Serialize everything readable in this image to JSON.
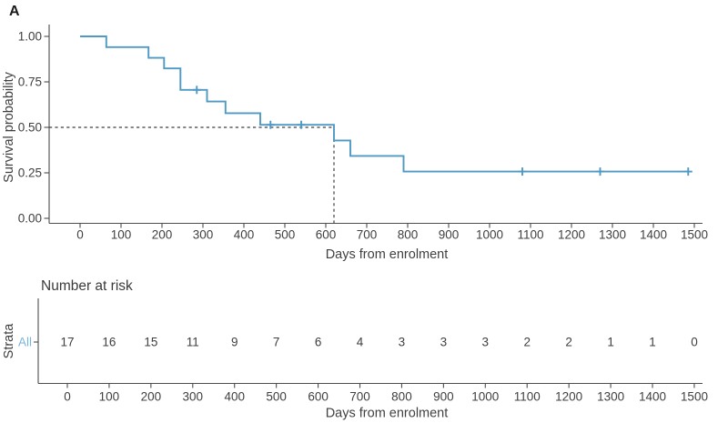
{
  "panel_label": "A",
  "colors": {
    "curve": "#4f99c4",
    "axis": "#4d4d4d",
    "text": "#404040",
    "dashed": "#3f3f3f",
    "strata_label": "#7ab3da"
  },
  "chart_data": {
    "type": "line",
    "subtype": "kaplan-meier-step",
    "title": "A",
    "xlabel": "Days from enrolment",
    "ylabel": "Survival probability",
    "xlim": [
      0,
      1500
    ],
    "ylim": [
      0.0,
      1.0
    ],
    "grid": false,
    "xticks": [
      0,
      100,
      200,
      300,
      400,
      500,
      600,
      700,
      800,
      900,
      1000,
      1100,
      1200,
      1300,
      1400,
      1500
    ],
    "yticks": [
      0.0,
      0.25,
      0.5,
      0.75,
      1.0
    ],
    "ytick_labels": [
      "0.00",
      "0.25",
      "0.50",
      "0.75",
      "1.00"
    ],
    "series": [
      {
        "name": "All",
        "color": "#4f99c4",
        "start": {
          "t": 0,
          "s": 1.0
        },
        "steps": [
          {
            "t": 64,
            "s": 0.941
          },
          {
            "t": 167,
            "s": 0.882
          },
          {
            "t": 205,
            "s": 0.824
          },
          {
            "t": 245,
            "s": 0.706
          },
          {
            "t": 310,
            "s": 0.642
          },
          {
            "t": 355,
            "s": 0.578
          },
          {
            "t": 440,
            "s": 0.514
          },
          {
            "t": 620,
            "s": 0.428
          },
          {
            "t": 660,
            "s": 0.343
          },
          {
            "t": 790,
            "s": 0.257
          }
        ],
        "end_time": 1485,
        "censor_marks": [
          {
            "t": 285,
            "s": 0.706
          },
          {
            "t": 465,
            "s": 0.514
          },
          {
            "t": 540,
            "s": 0.514
          },
          {
            "t": 1080,
            "s": 0.257
          },
          {
            "t": 1270,
            "s": 0.257
          },
          {
            "t": 1485,
            "s": 0.257
          }
        ]
      }
    ],
    "median_line": {
      "time": 620,
      "survival": 0.5
    },
    "risk_table": {
      "title": "Number at risk",
      "ylabel": "Strata",
      "xlabel": "Days from enrolment",
      "times": [
        0,
        100,
        200,
        300,
        400,
        500,
        600,
        700,
        800,
        900,
        1000,
        1100,
        1200,
        1300,
        1400,
        1500
      ],
      "rows": [
        {
          "name": "All",
          "values": [
            17,
            16,
            15,
            11,
            9,
            7,
            6,
            4,
            3,
            3,
            3,
            2,
            2,
            1,
            1,
            0
          ]
        }
      ]
    }
  }
}
